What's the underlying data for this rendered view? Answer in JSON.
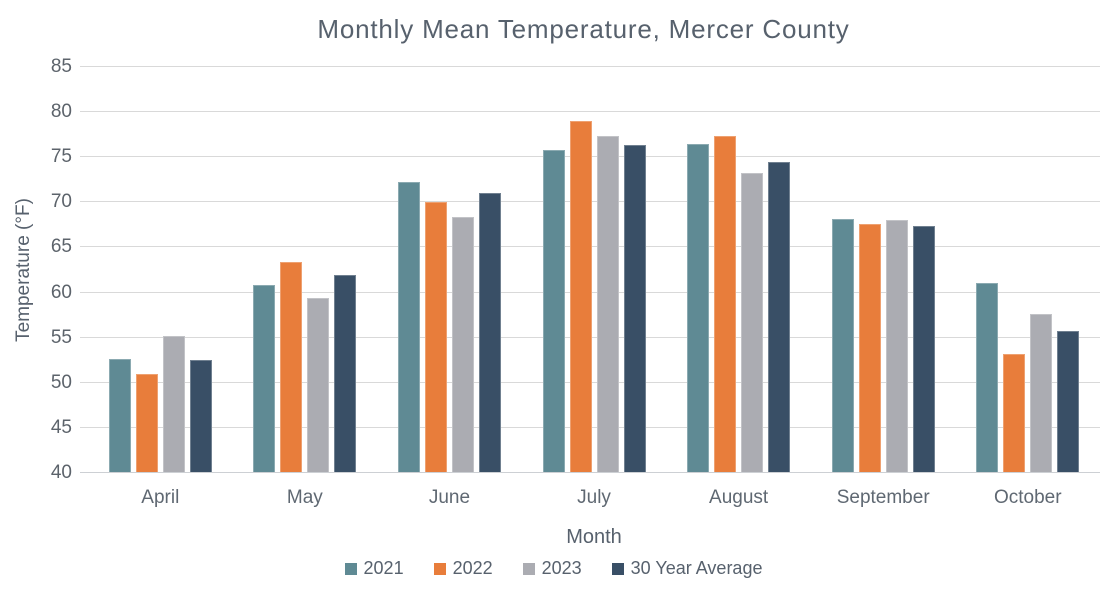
{
  "chart_data": {
    "type": "bar",
    "title": "Monthly Mean Temperature, Mercer County",
    "xlabel": "Month",
    "ylabel": "Temperature (°F)",
    "categories": [
      "April",
      "May",
      "June",
      "July",
      "August",
      "September",
      "October"
    ],
    "series": [
      {
        "name": "2021",
        "color": "#5f8a94",
        "values": [
          52.6,
          60.8,
          72.3,
          75.8,
          76.5,
          68.2,
          61.1
        ]
      },
      {
        "name": "2022",
        "color": "#e87d3b",
        "values": [
          51.0,
          63.4,
          70.0,
          79.0,
          77.4,
          67.6,
          53.2
        ]
      },
      {
        "name": "2023",
        "color": "#abacb2",
        "values": [
          55.2,
          59.4,
          68.4,
          77.3,
          73.2,
          68.0,
          57.6
        ]
      },
      {
        "name": "30 Year Average",
        "color": "#394f66",
        "values": [
          52.5,
          62.0,
          71.0,
          76.4,
          74.5,
          67.4,
          55.7
        ]
      }
    ],
    "ylim": [
      40,
      85
    ],
    "yticks": [
      40,
      45,
      50,
      55,
      60,
      65,
      70,
      75,
      80,
      85
    ],
    "grid": true,
    "legend_position": "bottom"
  },
  "style": {
    "gridline_color": "#d9d9d9",
    "axisline_color": "#cdd0d4",
    "title_color": "#57616d",
    "tick_color": "#5c636b"
  }
}
